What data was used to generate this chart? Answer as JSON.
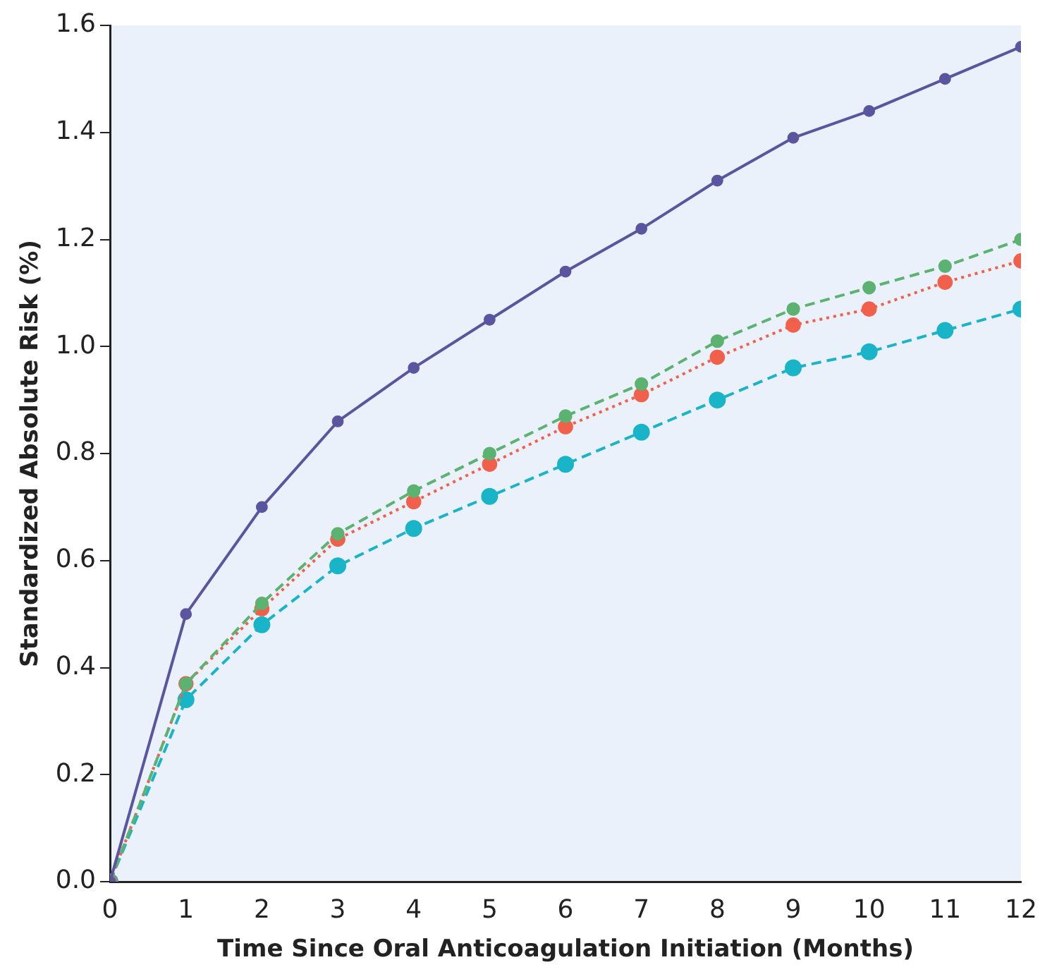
{
  "chart_data": {
    "type": "line",
    "xlabel": "Time Since Oral Anticoagulation Initiation (Months)",
    "ylabel": "Standardized Absolute Risk (%)",
    "x": [
      0,
      1,
      2,
      3,
      4,
      5,
      6,
      7,
      8,
      9,
      10,
      11,
      12
    ],
    "xlim": [
      0,
      12
    ],
    "xticks": [
      0,
      1,
      2,
      3,
      4,
      5,
      6,
      7,
      8,
      9,
      10,
      11,
      12
    ],
    "ylim": [
      0,
      1.6
    ],
    "yticks": [
      {
        "value": 0,
        "label": "0.0"
      },
      0.2,
      0.4,
      0.6,
      0.8,
      {
        "value": 1,
        "label": "1.0"
      },
      1.2,
      1.4,
      1.6
    ],
    "grid": false,
    "legend": false,
    "marker": "circle",
    "series": [
      {
        "color": "#5b55a0",
        "line_style": "solid",
        "values": [
          0,
          0.5,
          0.7,
          0.86,
          0.96,
          1.05,
          1.14,
          1.22,
          1.31,
          1.39,
          1.44,
          1.5,
          1.56
        ]
      },
      {
        "color": "#5cb270",
        "line_style": "dashed",
        "values": [
          0,
          0.37,
          0.52,
          0.65,
          0.73,
          0.8,
          0.87,
          0.93,
          1.01,
          1.07,
          1.11,
          1.15,
          1.2
        ]
      },
      {
        "color": "#f0604b",
        "line_style": "dotted",
        "values": [
          0,
          0.37,
          0.51,
          0.64,
          0.71,
          0.78,
          0.85,
          0.91,
          0.98,
          1.04,
          1.07,
          1.12,
          1.16
        ]
      },
      {
        "color": "#1ab4c8",
        "line_style": "dashed",
        "values": [
          0,
          0.34,
          0.48,
          0.59,
          0.66,
          0.72,
          0.78,
          0.84,
          0.9,
          0.96,
          0.99,
          1.03,
          1.07
        ]
      }
    ]
  }
}
